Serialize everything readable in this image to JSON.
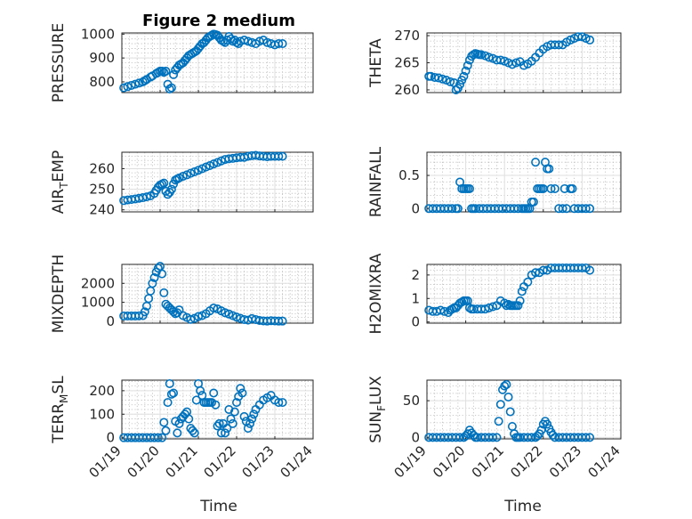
{
  "figure": {
    "title": "Figure 2 medium",
    "marker_color": "#0072BD",
    "x_ticks": [
      "01/19",
      "01/20",
      "01/21",
      "01/22",
      "01/23",
      "01/24"
    ],
    "xlabel": "Time"
  },
  "chart_data": [
    {
      "type": "scatter",
      "ylabel": "PRESSURE",
      "title": "Figure 2 medium",
      "xlim": [
        0,
        5
      ],
      "ylim": [
        755,
        1005
      ],
      "yticks": [
        800,
        900,
        1000
      ],
      "grid": true,
      "x": [
        0.05,
        0.15,
        0.25,
        0.35,
        0.45,
        0.55,
        0.6,
        0.65,
        0.75,
        0.8,
        0.9,
        0.95,
        1.0,
        1.05,
        1.1,
        1.15,
        1.2,
        1.25,
        1.3,
        1.35,
        1.4,
        1.45,
        1.5,
        1.55,
        1.6,
        1.65,
        1.7,
        1.75,
        1.8,
        1.85,
        1.9,
        1.95,
        2.0,
        2.05,
        2.1,
        2.15,
        2.2,
        2.25,
        2.3,
        2.35,
        2.4,
        2.45,
        2.5,
        2.55,
        2.6,
        2.65,
        2.7,
        2.75,
        2.8,
        2.85,
        2.9,
        2.95,
        3.0,
        3.05,
        3.1,
        3.2,
        3.3,
        3.4,
        3.5,
        3.6,
        3.7,
        3.8,
        3.9,
        4.0,
        4.1,
        4.2
      ],
      "y": [
        775,
        780,
        785,
        790,
        795,
        800,
        805,
        810,
        820,
        825,
        835,
        840,
        845,
        845,
        840,
        845,
        790,
        770,
        775,
        830,
        850,
        860,
        870,
        875,
        880,
        890,
        900,
        910,
        915,
        920,
        925,
        930,
        940,
        950,
        960,
        965,
        975,
        985,
        990,
        995,
        1000,
        998,
        995,
        985,
        975,
        970,
        965,
        975,
        990,
        980,
        970,
        975,
        965,
        960,
        970,
        975,
        970,
        965,
        960,
        970,
        975,
        965,
        960,
        955,
        960,
        960
      ]
    },
    {
      "type": "scatter",
      "ylabel": "THETA",
      "xlim": [
        0,
        5
      ],
      "ylim": [
        259.5,
        270.5
      ],
      "yticks": [
        260,
        265,
        270
      ],
      "grid": true,
      "x": [
        0.05,
        0.1,
        0.2,
        0.3,
        0.4,
        0.5,
        0.6,
        0.7,
        0.75,
        0.8,
        0.85,
        0.9,
        0.95,
        1.0,
        1.05,
        1.1,
        1.15,
        1.2,
        1.25,
        1.3,
        1.35,
        1.4,
        1.5,
        1.6,
        1.7,
        1.8,
        1.9,
        2.0,
        2.1,
        2.2,
        2.3,
        2.4,
        2.5,
        2.6,
        2.7,
        2.8,
        2.9,
        3.0,
        3.1,
        3.2,
        3.3,
        3.4,
        3.5,
        3.6,
        3.7,
        3.8,
        3.9,
        4.0,
        4.1,
        4.2
      ],
      "y": [
        262.5,
        262.5,
        262.3,
        262.2,
        262.0,
        261.8,
        261.5,
        261.3,
        260.0,
        260.3,
        261.0,
        261.8,
        262.5,
        263.5,
        264.5,
        265.5,
        266.2,
        266.5,
        266.7,
        266.6,
        266.5,
        266.5,
        266.3,
        266.0,
        265.8,
        265.5,
        265.5,
        265.3,
        265.0,
        264.7,
        265.0,
        265.2,
        264.5,
        264.8,
        265.3,
        266.0,
        266.8,
        267.5,
        268.0,
        268.3,
        268.3,
        268.3,
        268.3,
        268.8,
        269.2,
        269.5,
        269.8,
        269.8,
        269.5,
        269.2
      ]
    },
    {
      "type": "scatter",
      "ylabel": "AIR_TEMP",
      "xlim": [
        0,
        5
      ],
      "ylim": [
        239,
        268
      ],
      "yticks": [
        240,
        250,
        260
      ],
      "grid": true,
      "x": [
        0.05,
        0.15,
        0.25,
        0.35,
        0.45,
        0.55,
        0.65,
        0.75,
        0.85,
        0.9,
        0.95,
        1.0,
        1.05,
        1.1,
        1.15,
        1.2,
        1.25,
        1.3,
        1.35,
        1.4,
        1.45,
        1.5,
        1.6,
        1.7,
        1.8,
        1.9,
        2.0,
        2.1,
        2.2,
        2.3,
        2.4,
        2.5,
        2.6,
        2.7,
        2.8,
        2.9,
        3.0,
        3.1,
        3.2,
        3.3,
        3.4,
        3.5,
        3.6,
        3.7,
        3.8,
        3.9,
        4.0,
        4.1,
        4.2
      ],
      "y": [
        244.5,
        244.8,
        245.0,
        245.3,
        245.6,
        245.9,
        246.3,
        246.8,
        248.0,
        249.5,
        251.0,
        252.0,
        252.5,
        253.0,
        249.0,
        247.5,
        248.5,
        250.0,
        252.5,
        254.5,
        255.0,
        255.5,
        256.3,
        257.0,
        257.8,
        258.5,
        259.2,
        260.0,
        260.8,
        261.5,
        262.3,
        263.0,
        263.8,
        264.5,
        264.8,
        265.0,
        265.3,
        265.5,
        265.5,
        266.0,
        266.3,
        266.5,
        266.2,
        266.0,
        265.8,
        266.0,
        266.0,
        266.0,
        266.0
      ]
    },
    {
      "type": "scatter",
      "ylabel": "RAINFALL",
      "xlim": [
        0,
        5
      ],
      "ylim": [
        -0.05,
        0.85
      ],
      "yticks": [
        0,
        0.5
      ],
      "grid": true,
      "x": [
        0.05,
        0.15,
        0.25,
        0.35,
        0.45,
        0.55,
        0.65,
        0.75,
        0.8,
        0.85,
        0.9,
        0.95,
        1.0,
        1.05,
        1.1,
        1.15,
        1.2,
        1.25,
        1.35,
        1.45,
        1.55,
        1.65,
        1.75,
        1.85,
        1.95,
        2.05,
        2.15,
        2.25,
        2.35,
        2.45,
        2.5,
        2.55,
        2.6,
        2.65,
        2.7,
        2.75,
        2.8,
        2.85,
        2.9,
        2.95,
        3.0,
        3.05,
        3.1,
        3.15,
        3.2,
        3.3,
        3.4,
        3.5,
        3.55,
        3.6,
        3.7,
        3.75,
        3.8,
        3.9,
        4.0,
        4.1,
        4.2
      ],
      "y": [
        0,
        0,
        0,
        0,
        0,
        0,
        0,
        0,
        0,
        0.4,
        0.3,
        0.3,
        0.3,
        0.3,
        0.3,
        0,
        0,
        0,
        0,
        0,
        0,
        0,
        0,
        0,
        0,
        0,
        0,
        0,
        0,
        0,
        0,
        0,
        0,
        0,
        0.1,
        0.1,
        0.7,
        0.3,
        0.3,
        0.3,
        0.3,
        0.7,
        0.6,
        0.6,
        0.3,
        0.3,
        0,
        0,
        0.3,
        0,
        0.3,
        0.3,
        0,
        0,
        0,
        0,
        0
      ]
    },
    {
      "type": "scatter",
      "ylabel": "MIXDEPTH",
      "xlim": [
        0,
        5
      ],
      "ylim": [
        -100,
        3000
      ],
      "yticks": [
        0,
        1000,
        2000
      ],
      "grid": true,
      "x": [
        0.05,
        0.15,
        0.25,
        0.35,
        0.45,
        0.55,
        0.6,
        0.65,
        0.7,
        0.75,
        0.8,
        0.85,
        0.9,
        0.95,
        1.0,
        1.05,
        1.1,
        1.15,
        1.2,
        1.25,
        1.3,
        1.35,
        1.4,
        1.45,
        1.5,
        1.6,
        1.7,
        1.8,
        1.9,
        2.0,
        2.1,
        2.2,
        2.3,
        2.4,
        2.5,
        2.6,
        2.7,
        2.8,
        2.9,
        3.0,
        3.1,
        3.2,
        3.3,
        3.4,
        3.5,
        3.6,
        3.7,
        3.8,
        3.9,
        4.0,
        4.1,
        4.2
      ],
      "y": [
        280,
        280,
        280,
        280,
        290,
        300,
        500,
        800,
        1200,
        1600,
        2000,
        2300,
        2600,
        2800,
        2900,
        2500,
        1500,
        900,
        800,
        700,
        600,
        500,
        400,
        450,
        600,
        300,
        200,
        100,
        150,
        250,
        300,
        400,
        550,
        700,
        650,
        550,
        450,
        380,
        300,
        220,
        150,
        90,
        60,
        140,
        90,
        40,
        20,
        10,
        30,
        20,
        10,
        10
      ]
    },
    {
      "type": "scatter",
      "ylabel": "H2OMIXRA",
      "xlim": [
        0,
        5
      ],
      "ylim": [
        -0.05,
        2.45
      ],
      "yticks": [
        0,
        1,
        2
      ],
      "grid": true,
      "x": [
        0.05,
        0.15,
        0.25,
        0.35,
        0.45,
        0.55,
        0.6,
        0.65,
        0.7,
        0.75,
        0.8,
        0.85,
        0.9,
        0.95,
        1.0,
        1.05,
        1.1,
        1.15,
        1.2,
        1.3,
        1.4,
        1.5,
        1.6,
        1.7,
        1.8,
        1.9,
        2.0,
        2.05,
        2.1,
        2.15,
        2.2,
        2.25,
        2.3,
        2.35,
        2.4,
        2.45,
        2.5,
        2.6,
        2.7,
        2.8,
        2.9,
        3.0,
        3.1,
        3.2,
        3.3,
        3.4,
        3.5,
        3.6,
        3.7,
        3.8,
        3.9,
        4.0,
        4.1,
        4.2
      ],
      "y": [
        0.5,
        0.45,
        0.45,
        0.5,
        0.45,
        0.4,
        0.5,
        0.55,
        0.6,
        0.6,
        0.7,
        0.8,
        0.85,
        0.9,
        0.9,
        0.9,
        0.6,
        0.55,
        0.55,
        0.55,
        0.55,
        0.55,
        0.6,
        0.65,
        0.7,
        0.9,
        0.8,
        0.7,
        0.75,
        0.7,
        0.7,
        0.7,
        0.7,
        0.7,
        0.9,
        1.3,
        1.5,
        1.7,
        2.0,
        2.1,
        2.1,
        2.2,
        2.2,
        2.3,
        2.3,
        2.3,
        2.3,
        2.3,
        2.3,
        2.3,
        2.3,
        2.3,
        2.3,
        2.2
      ]
    },
    {
      "type": "scatter",
      "ylabel": "TERR_MSL",
      "xlim": [
        0,
        5
      ],
      "ylim": [
        -5,
        245
      ],
      "yticks": [
        0,
        100,
        200
      ],
      "grid": true,
      "x": [
        0.05,
        0.15,
        0.25,
        0.35,
        0.45,
        0.55,
        0.65,
        0.75,
        0.85,
        0.95,
        1.05,
        1.1,
        1.15,
        1.2,
        1.25,
        1.3,
        1.35,
        1.4,
        1.45,
        1.5,
        1.55,
        1.6,
        1.65,
        1.7,
        1.75,
        1.8,
        1.85,
        1.9,
        1.95,
        2.0,
        2.05,
        2.1,
        2.15,
        2.2,
        2.25,
        2.3,
        2.35,
        2.4,
        2.45,
        2.5,
        2.55,
        2.6,
        2.65,
        2.7,
        2.75,
        2.8,
        2.85,
        2.9,
        2.95,
        3.0,
        3.05,
        3.1,
        3.15,
        3.2,
        3.25,
        3.3,
        3.35,
        3.4,
        3.45,
        3.5,
        3.6,
        3.7,
        3.8,
        3.9,
        4.0,
        4.1,
        4.2
      ],
      "y": [
        0,
        0,
        0,
        0,
        0,
        0,
        0,
        0,
        0,
        0,
        0,
        65,
        30,
        150,
        230,
        185,
        190,
        70,
        20,
        60,
        80,
        90,
        100,
        110,
        80,
        40,
        30,
        20,
        160,
        230,
        200,
        180,
        150,
        150,
        150,
        150,
        150,
        190,
        140,
        50,
        60,
        20,
        60,
        20,
        40,
        120,
        80,
        60,
        110,
        150,
        175,
        210,
        190,
        90,
        70,
        40,
        60,
        80,
        100,
        120,
        140,
        160,
        170,
        180,
        160,
        150,
        150
      ]
    },
    {
      "type": "scatter",
      "ylabel": "SUN_FLUX",
      "xlim": [
        0,
        5
      ],
      "ylim": [
        -2,
        78
      ],
      "yticks": [
        0,
        50
      ],
      "grid": true,
      "x": [
        0.05,
        0.15,
        0.25,
        0.35,
        0.45,
        0.55,
        0.65,
        0.75,
        0.85,
        0.95,
        1.0,
        1.05,
        1.1,
        1.15,
        1.2,
        1.25,
        1.3,
        1.4,
        1.5,
        1.6,
        1.7,
        1.8,
        1.85,
        1.9,
        1.95,
        2.0,
        2.05,
        2.1,
        2.15,
        2.2,
        2.25,
        2.3,
        2.35,
        2.4,
        2.5,
        2.6,
        2.7,
        2.8,
        2.85,
        2.9,
        2.95,
        3.0,
        3.05,
        3.1,
        3.15,
        3.2,
        3.25,
        3.3,
        3.4,
        3.5,
        3.6,
        3.7,
        3.8,
        3.9,
        4.0,
        4.1,
        4.2
      ],
      "y": [
        0,
        0,
        0,
        0,
        0,
        0,
        0,
        0,
        0,
        0,
        2,
        5,
        10,
        6,
        3,
        0,
        0,
        0,
        0,
        0,
        0,
        0,
        22,
        45,
        65,
        70,
        72,
        55,
        35,
        15,
        5,
        0,
        0,
        0,
        0,
        0,
        0,
        0,
        2,
        5,
        10,
        18,
        22,
        18,
        12,
        7,
        3,
        0,
        0,
        0,
        0,
        0,
        0,
        0,
        0,
        0,
        0
      ]
    }
  ]
}
